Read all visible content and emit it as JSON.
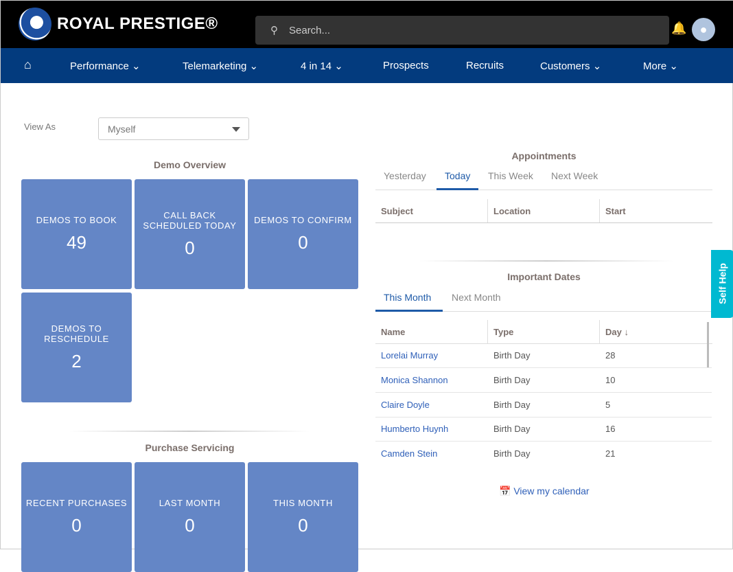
{
  "header": {
    "brand": "ROYAL PRESTIGE®",
    "search_placeholder": "Search..."
  },
  "nav": [
    "Performance",
    "Telemarketing",
    "4 in 14",
    "Prospects",
    "Recruits",
    "Customers",
    "More"
  ],
  "view_as": {
    "label": "View As",
    "value": "Myself"
  },
  "demo_overview": {
    "title": "Demo Overview",
    "tiles": [
      {
        "label": "DEMOS TO BOOK",
        "value": "49"
      },
      {
        "label": "CALL BACK SCHEDULED TODAY",
        "value": "0"
      },
      {
        "label": "DEMOS TO CONFIRM",
        "value": "0"
      },
      {
        "label": "DEMOS TO RESCHEDULE",
        "value": "2"
      }
    ]
  },
  "purchase_servicing": {
    "title": "Purchase Servicing",
    "tiles": [
      {
        "label": "RECENT PURCHASES",
        "value": "0"
      },
      {
        "label": "LAST MONTH",
        "value": "0"
      },
      {
        "label": "THIS MONTH",
        "value": "0"
      }
    ]
  },
  "appointments": {
    "title": "Appointments",
    "tabs": [
      "Yesterday",
      "Today",
      "This Week",
      "Next Week"
    ],
    "active_tab": "Today",
    "columns": [
      "Subject",
      "Location",
      "Start"
    ]
  },
  "important_dates": {
    "title": "Important Dates",
    "tabs": [
      "This Month",
      "Next Month"
    ],
    "active_tab": "This Month",
    "columns": [
      "Name",
      "Type",
      "Day ↓"
    ],
    "rows": [
      {
        "name": "Lorelai Murray",
        "type": "Birth Day",
        "day": "28"
      },
      {
        "name": "Monica Shannon",
        "type": "Birth Day",
        "day": "10"
      },
      {
        "name": "Claire Doyle",
        "type": "Birth Day",
        "day": "5"
      },
      {
        "name": "Humberto Huynh",
        "type": "Birth Day",
        "day": "16"
      },
      {
        "name": "Camden Stein",
        "type": "Birth Day",
        "day": "21"
      }
    ]
  },
  "calendar_link": "View my calendar",
  "self_help": "Self Help",
  "colors": {
    "nav": "#033b7e",
    "tile": "#6486c6",
    "accent": "#1e5aa8",
    "help": "#00b9d1"
  }
}
